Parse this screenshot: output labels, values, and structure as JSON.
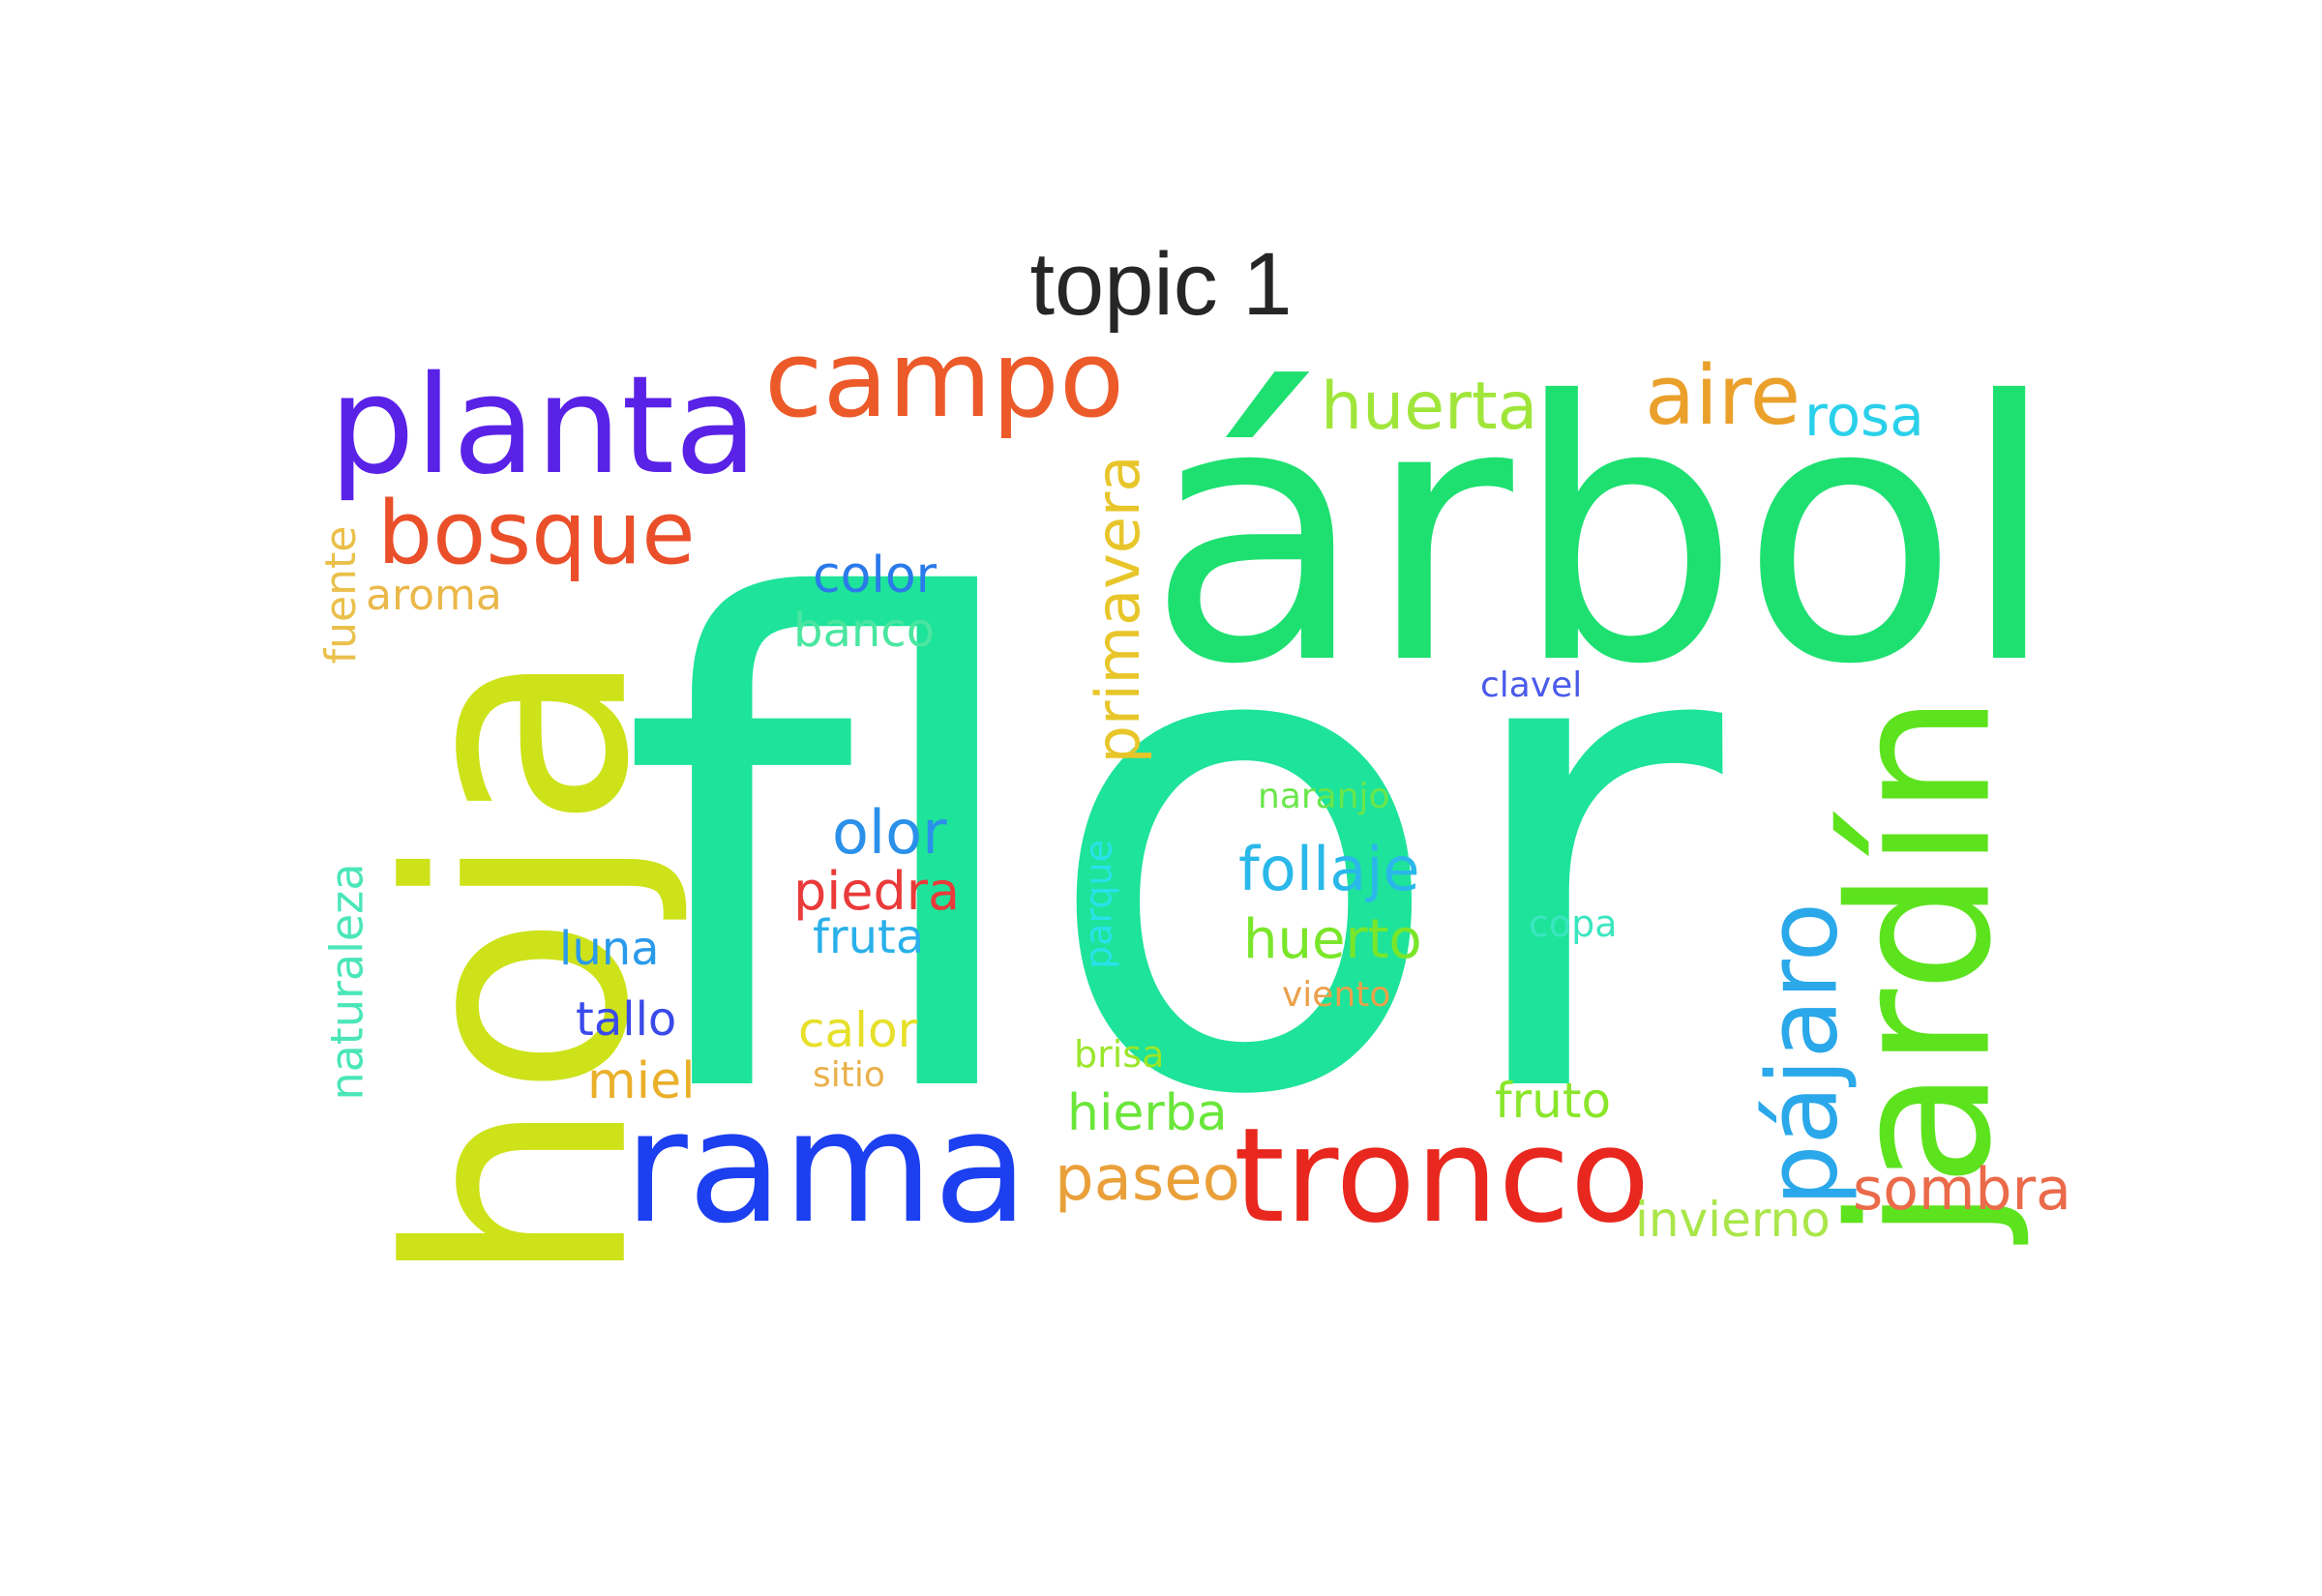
{
  "title": "topic 1",
  "words": [
    {
      "text": "flor",
      "color": "#1ee39a"
    },
    {
      "text": "árbol",
      "color": "#1ee071"
    },
    {
      "text": "hoja",
      "color": "#cde219"
    },
    {
      "text": "rama",
      "color": "#1c3ff0"
    },
    {
      "text": "tronco",
      "color": "#e8271e"
    },
    {
      "text": "jardín",
      "color": "#5de31e"
    },
    {
      "text": "planta",
      "color": "#5a22e6"
    },
    {
      "text": "campo",
      "color": "#ec5a2a"
    },
    {
      "text": "bosque",
      "color": "#ea4f2a"
    },
    {
      "text": "pájaro",
      "color": "#2aa8ea"
    },
    {
      "text": "aire",
      "color": "#eaa02a"
    },
    {
      "text": "huerta",
      "color": "#a0e63a"
    },
    {
      "text": "rosa",
      "color": "#2ad0ea"
    },
    {
      "text": "primavera",
      "color": "#e8c62a"
    },
    {
      "text": "color",
      "color": "#2a7aea"
    },
    {
      "text": "banco",
      "color": "#4ae6a0"
    },
    {
      "text": "aroma",
      "color": "#eab84a"
    },
    {
      "text": "fuente",
      "color": "#eac04a"
    },
    {
      "text": "clavel",
      "color": "#4a5aea"
    },
    {
      "text": "naranjo",
      "color": "#6ae64a"
    },
    {
      "text": "olor",
      "color": "#2a90ea"
    },
    {
      "text": "follaje",
      "color": "#2ab8ea"
    },
    {
      "text": "piedra",
      "color": "#ea3a3a"
    },
    {
      "text": "fruta",
      "color": "#2ab0ea"
    },
    {
      "text": "huerto",
      "color": "#7ae62a"
    },
    {
      "text": "parque",
      "color": "#2ae0ea"
    },
    {
      "text": "copa",
      "color": "#3ae6c0"
    },
    {
      "text": "naturaleza",
      "color": "#4ae6b8"
    },
    {
      "text": "luna",
      "color": "#2a9aea"
    },
    {
      "text": "viento",
      "color": "#eaa04a"
    },
    {
      "text": "tallo",
      "color": "#3a4aea"
    },
    {
      "text": "calor",
      "color": "#e6e02a"
    },
    {
      "text": "brisa",
      "color": "#9ae62a"
    },
    {
      "text": "sitio",
      "color": "#eab04a"
    },
    {
      "text": "miel",
      "color": "#eab02a"
    },
    {
      "text": "fruto",
      "color": "#8ae62a"
    },
    {
      "text": "hierba",
      "color": "#6ae63a"
    },
    {
      "text": "paseo",
      "color": "#eaa03a"
    },
    {
      "text": "invierno",
      "color": "#aae64a"
    },
    {
      "text": "sombra",
      "color": "#ea6a4a"
    }
  ]
}
